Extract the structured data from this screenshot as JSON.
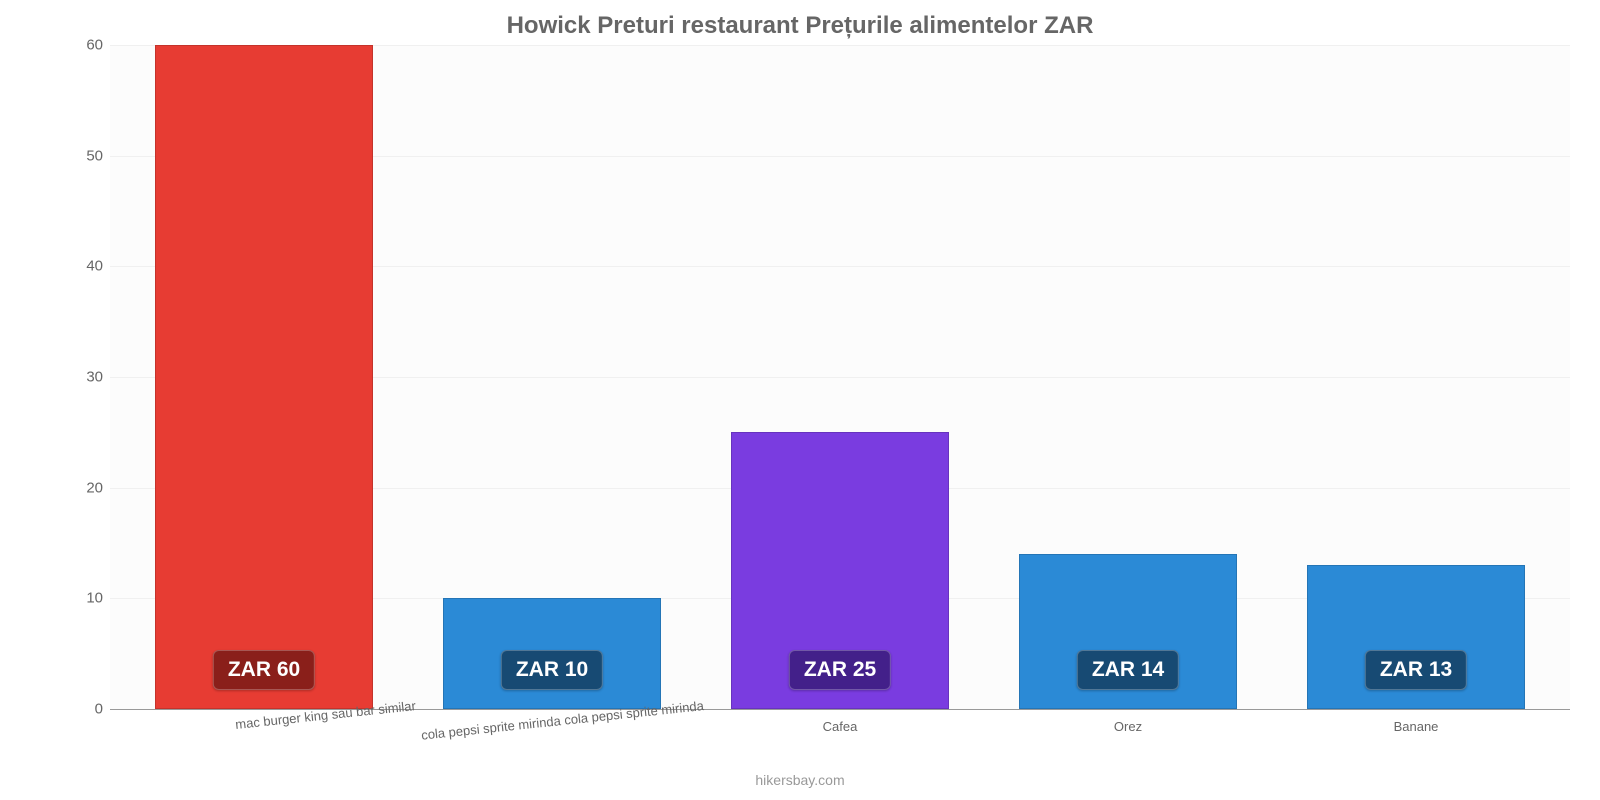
{
  "chart": {
    "type": "bar",
    "title": "Howick Preturi restaurant Prețurile alimentelor ZAR",
    "title_color": "#666666",
    "title_fontsize": 24,
    "background_color": "#ffffff",
    "plot_background": "#fcfcfc",
    "grid_color": "#f0f0f0",
    "axis_color": "#999999",
    "tick_label_color": "#666666",
    "tick_fontsize": 15,
    "xtick_fontsize": 13,
    "value_badge_fontsize": 21,
    "value_prefix": "ZAR ",
    "ylim": [
      0,
      60
    ],
    "yticks": [
      0,
      10,
      20,
      30,
      40,
      50,
      60
    ],
    "bar_width_ratio": 0.76,
    "categories": [
      "mac burger king sau bar similar",
      "cola pepsi sprite mirinda cola pepsi sprite mirinda",
      "Cafea",
      "Orez",
      "Banane"
    ],
    "values": [
      60,
      10,
      25,
      14,
      13
    ],
    "bar_colors": [
      "#e73c33",
      "#2b8ad6",
      "#7a3ce0",
      "#2b8ad6",
      "#2b8ad6"
    ],
    "badge_bg_colors": [
      "#8a1f1a",
      "#174a73",
      "#43208a",
      "#174a73",
      "#174a73"
    ],
    "badge_text_color": "#ffffff",
    "xlabel_rotated_indices": [
      0,
      1
    ],
    "source_label": "hikersbay.com",
    "source_color": "#999999"
  }
}
